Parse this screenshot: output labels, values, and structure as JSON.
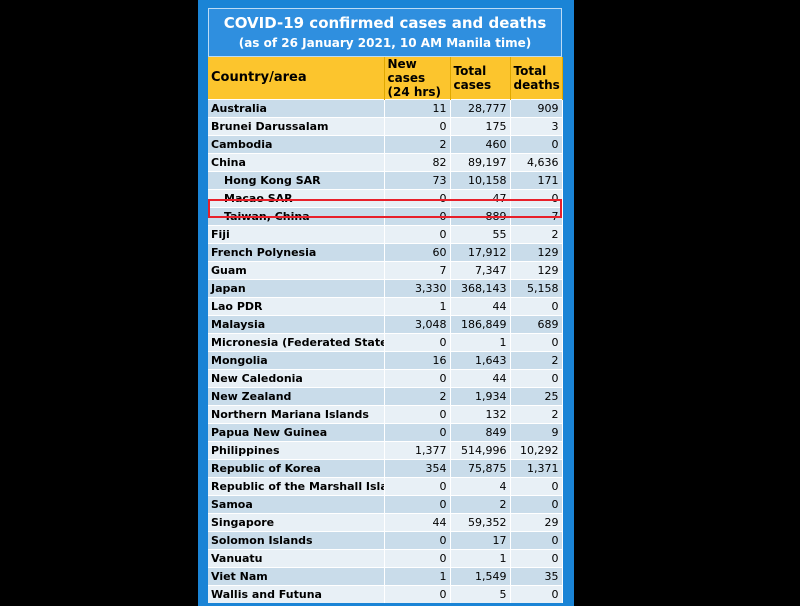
{
  "title": {
    "line1": "COVID-19 confirmed cases and deaths",
    "line2": "(as of 26 January 2021, 10 AM Manila time)"
  },
  "columns": [
    "Country/area",
    "New cases (24 hrs)",
    "Total cases",
    "Total deaths"
  ],
  "rows": [
    {
      "country": "Australia",
      "new": "11",
      "total": "28,777",
      "deaths": "909"
    },
    {
      "country": "Brunei Darussalam",
      "new": "0",
      "total": "175",
      "deaths": "3"
    },
    {
      "country": "Cambodia",
      "new": "2",
      "total": "460",
      "deaths": "0"
    },
    {
      "country": "China",
      "new": "82",
      "total": "89,197",
      "deaths": "4,636"
    },
    {
      "country": "Hong Kong SAR",
      "new": "73",
      "total": "10,158",
      "deaths": "171"
    },
    {
      "country": "Macao SAR",
      "new": "0",
      "total": "47",
      "deaths": "0"
    },
    {
      "country": "Taiwan, China",
      "new": "0",
      "total": "889",
      "deaths": "7"
    },
    {
      "country": "Fiji",
      "new": "0",
      "total": "55",
      "deaths": "2"
    },
    {
      "country": "French Polynesia",
      "new": "60",
      "total": "17,912",
      "deaths": "129"
    },
    {
      "country": "Guam",
      "new": "7",
      "total": "7,347",
      "deaths": "129"
    },
    {
      "country": "Japan",
      "new": "3,330",
      "total": "368,143",
      "deaths": "5,158"
    },
    {
      "country": "Lao PDR",
      "new": "1",
      "total": "44",
      "deaths": "0"
    },
    {
      "country": "Malaysia",
      "new": "3,048",
      "total": "186,849",
      "deaths": "689"
    },
    {
      "country": "Micronesia (Federated States Of)",
      "new": "0",
      "total": "1",
      "deaths": "0"
    },
    {
      "country": "Mongolia",
      "new": "16",
      "total": "1,643",
      "deaths": "2"
    },
    {
      "country": "New Caledonia",
      "new": "0",
      "total": "44",
      "deaths": "0"
    },
    {
      "country": "New Zealand",
      "new": "2",
      "total": "1,934",
      "deaths": "25"
    },
    {
      "country": "Northern Mariana Islands",
      "new": "0",
      "total": "132",
      "deaths": "2"
    },
    {
      "country": "Papua New Guinea",
      "new": "0",
      "total": "849",
      "deaths": "9"
    },
    {
      "country": "Philippines",
      "new": "1,377",
      "total": "514,996",
      "deaths": "10,292"
    },
    {
      "country": "Republic of Korea",
      "new": "354",
      "total": "75,875",
      "deaths": "1,371"
    },
    {
      "country": "Republic of the Marshall Islands",
      "new": "0",
      "total": "4",
      "deaths": "0"
    },
    {
      "country": "Samoa",
      "new": "0",
      "total": "2",
      "deaths": "0"
    },
    {
      "country": "Singapore",
      "new": "44",
      "total": "59,352",
      "deaths": "29"
    },
    {
      "country": "Solomon Islands",
      "new": "0",
      "total": "17",
      "deaths": "0"
    },
    {
      "country": "Vanuatu",
      "new": "0",
      "total": "1",
      "deaths": "0"
    },
    {
      "country": "Viet Nam",
      "new": "1",
      "total": "1,549",
      "deaths": "35"
    },
    {
      "country": "Wallis and Futuna",
      "new": "0",
      "total": "5",
      "deaths": "0"
    }
  ],
  "indented_rows": [
    4,
    5,
    6
  ],
  "highlighted_row": 6,
  "colors": {
    "background": "#000000",
    "panel": "#1a84d6",
    "header": "#fcc52d",
    "row_odd": "#c9dcea",
    "row_even": "#e8f0f6",
    "highlight_border": "#e8202a"
  }
}
